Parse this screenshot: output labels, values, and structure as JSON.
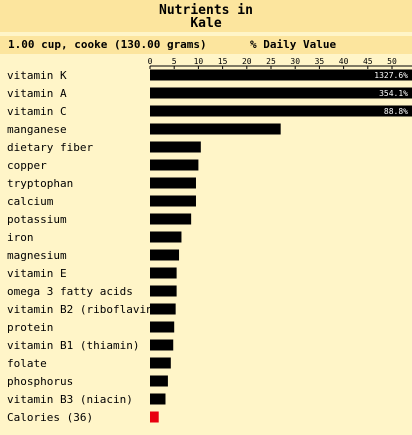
{
  "header": {
    "title_line1": "Nutrients in",
    "title_line2": "Kale",
    "serving": "1.00 cup, cooke (130.00 grams)",
    "dv_label": "% Daily Value"
  },
  "chart_data": {
    "type": "bar",
    "orientation": "horizontal",
    "title": "Nutrients in Kale",
    "xlabel": "% Daily Value",
    "xlim": [
      0,
      50
    ],
    "ticks": [
      "0",
      "5",
      "10",
      "15",
      "20",
      "25",
      "30",
      "35",
      "40",
      "45",
      "50"
    ],
    "categories": [
      "vitamin K",
      "vitamin A",
      "vitamin C",
      "manganese",
      "dietary fiber",
      "copper",
      "tryptophan",
      "calcium",
      "potassium",
      "iron",
      "magnesium",
      "vitamin E",
      "omega 3 fatty acids",
      "vitamin B2 (riboflavin)",
      "protein",
      "vitamin B1 (thiamin)",
      "folate",
      "phosphorus",
      "vitamin B3 (niacin)",
      "Calories (36)"
    ],
    "values": [
      1327.6,
      354.1,
      88.8,
      27,
      10.5,
      10,
      9.5,
      9.5,
      8.5,
      6.5,
      6,
      5.5,
      5.5,
      5.3,
      5,
      4.8,
      4.3,
      3.7,
      3.2,
      1.8
    ],
    "value_labels": [
      "1327.6%",
      "354.1%",
      "88.8%",
      "",
      "",
      "",
      "",
      "",
      "",
      "",
      "",
      "",
      "",
      "",
      "",
      "",
      "",
      "",
      "",
      ""
    ],
    "bar_colors": {
      "default": "#000000",
      "calories": "#e8000f"
    }
  }
}
